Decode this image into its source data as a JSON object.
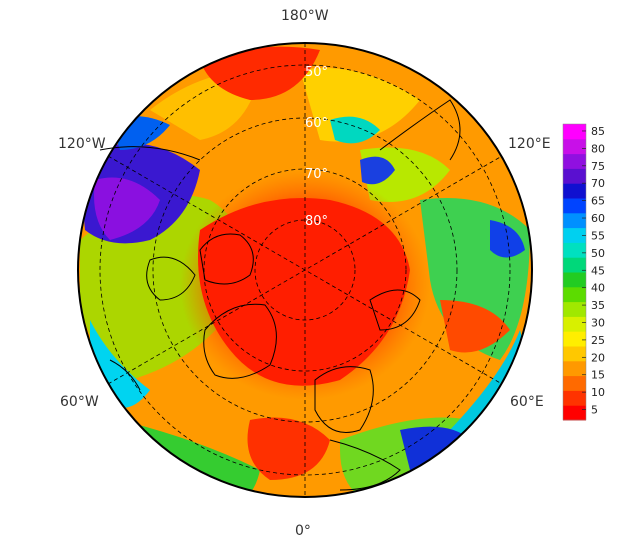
{
  "map": {
    "projection": "north-polar-stereographic",
    "longitude_labels": {
      "top": "180°W",
      "upper_left": "120°W",
      "upper_right": "120°E",
      "lower_left": "60°W",
      "lower_right": "60°E",
      "bottom": "0°"
    },
    "latitude_labels": [
      "50°",
      "60°",
      "70°",
      "80°"
    ],
    "background_color": "#ffffff",
    "coastline_color": "#000000"
  },
  "colorbar": {
    "ticks": [
      "85",
      "80",
      "75",
      "70",
      "65",
      "60",
      "55",
      "50",
      "45",
      "40",
      "35",
      "30",
      "25",
      "20",
      "15",
      "10",
      "5"
    ],
    "min": 2,
    "max": 87,
    "colors": [
      "#ff0000",
      "#ff3300",
      "#ff6a00",
      "#ff9900",
      "#ffc800",
      "#ffee00",
      "#d8f000",
      "#a0e800",
      "#5cdc00",
      "#22cc22",
      "#00d87a",
      "#00e0c0",
      "#00d0f0",
      "#0090ff",
      "#0044ff",
      "#1010d0",
      "#5a10d0",
      "#9010e0",
      "#c810e8",
      "#ff00ff"
    ]
  }
}
